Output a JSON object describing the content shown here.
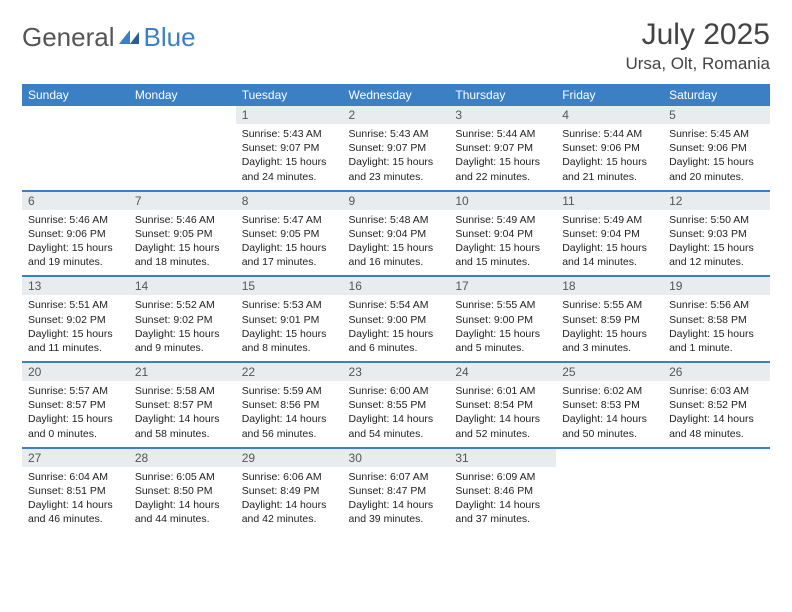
{
  "logo": {
    "text1": "General",
    "text2": "Blue"
  },
  "title": "July 2025",
  "location": "Ursa, Olt, Romania",
  "colors": {
    "brand": "#3b7fc4",
    "header_bg": "#3b7fc4",
    "header_text": "#ffffff",
    "daynum_bg": "#e9ecef",
    "body_text": "#222222",
    "page_bg": "#ffffff"
  },
  "weekdays": [
    "Sunday",
    "Monday",
    "Tuesday",
    "Wednesday",
    "Thursday",
    "Friday",
    "Saturday"
  ],
  "weeks": [
    [
      null,
      null,
      {
        "n": "1",
        "sr": "5:43 AM",
        "ss": "9:07 PM",
        "dl": "15 hours and 24 minutes."
      },
      {
        "n": "2",
        "sr": "5:43 AM",
        "ss": "9:07 PM",
        "dl": "15 hours and 23 minutes."
      },
      {
        "n": "3",
        "sr": "5:44 AM",
        "ss": "9:07 PM",
        "dl": "15 hours and 22 minutes."
      },
      {
        "n": "4",
        "sr": "5:44 AM",
        "ss": "9:06 PM",
        "dl": "15 hours and 21 minutes."
      },
      {
        "n": "5",
        "sr": "5:45 AM",
        "ss": "9:06 PM",
        "dl": "15 hours and 20 minutes."
      }
    ],
    [
      {
        "n": "6",
        "sr": "5:46 AM",
        "ss": "9:06 PM",
        "dl": "15 hours and 19 minutes."
      },
      {
        "n": "7",
        "sr": "5:46 AM",
        "ss": "9:05 PM",
        "dl": "15 hours and 18 minutes."
      },
      {
        "n": "8",
        "sr": "5:47 AM",
        "ss": "9:05 PM",
        "dl": "15 hours and 17 minutes."
      },
      {
        "n": "9",
        "sr": "5:48 AM",
        "ss": "9:04 PM",
        "dl": "15 hours and 16 minutes."
      },
      {
        "n": "10",
        "sr": "5:49 AM",
        "ss": "9:04 PM",
        "dl": "15 hours and 15 minutes."
      },
      {
        "n": "11",
        "sr": "5:49 AM",
        "ss": "9:04 PM",
        "dl": "15 hours and 14 minutes."
      },
      {
        "n": "12",
        "sr": "5:50 AM",
        "ss": "9:03 PM",
        "dl": "15 hours and 12 minutes."
      }
    ],
    [
      {
        "n": "13",
        "sr": "5:51 AM",
        "ss": "9:02 PM",
        "dl": "15 hours and 11 minutes."
      },
      {
        "n": "14",
        "sr": "5:52 AM",
        "ss": "9:02 PM",
        "dl": "15 hours and 9 minutes."
      },
      {
        "n": "15",
        "sr": "5:53 AM",
        "ss": "9:01 PM",
        "dl": "15 hours and 8 minutes."
      },
      {
        "n": "16",
        "sr": "5:54 AM",
        "ss": "9:00 PM",
        "dl": "15 hours and 6 minutes."
      },
      {
        "n": "17",
        "sr": "5:55 AM",
        "ss": "9:00 PM",
        "dl": "15 hours and 5 minutes."
      },
      {
        "n": "18",
        "sr": "5:55 AM",
        "ss": "8:59 PM",
        "dl": "15 hours and 3 minutes."
      },
      {
        "n": "19",
        "sr": "5:56 AM",
        "ss": "8:58 PM",
        "dl": "15 hours and 1 minute."
      }
    ],
    [
      {
        "n": "20",
        "sr": "5:57 AM",
        "ss": "8:57 PM",
        "dl": "15 hours and 0 minutes."
      },
      {
        "n": "21",
        "sr": "5:58 AM",
        "ss": "8:57 PM",
        "dl": "14 hours and 58 minutes."
      },
      {
        "n": "22",
        "sr": "5:59 AM",
        "ss": "8:56 PM",
        "dl": "14 hours and 56 minutes."
      },
      {
        "n": "23",
        "sr": "6:00 AM",
        "ss": "8:55 PM",
        "dl": "14 hours and 54 minutes."
      },
      {
        "n": "24",
        "sr": "6:01 AM",
        "ss": "8:54 PM",
        "dl": "14 hours and 52 minutes."
      },
      {
        "n": "25",
        "sr": "6:02 AM",
        "ss": "8:53 PM",
        "dl": "14 hours and 50 minutes."
      },
      {
        "n": "26",
        "sr": "6:03 AM",
        "ss": "8:52 PM",
        "dl": "14 hours and 48 minutes."
      }
    ],
    [
      {
        "n": "27",
        "sr": "6:04 AM",
        "ss": "8:51 PM",
        "dl": "14 hours and 46 minutes."
      },
      {
        "n": "28",
        "sr": "6:05 AM",
        "ss": "8:50 PM",
        "dl": "14 hours and 44 minutes."
      },
      {
        "n": "29",
        "sr": "6:06 AM",
        "ss": "8:49 PM",
        "dl": "14 hours and 42 minutes."
      },
      {
        "n": "30",
        "sr": "6:07 AM",
        "ss": "8:47 PM",
        "dl": "14 hours and 39 minutes."
      },
      {
        "n": "31",
        "sr": "6:09 AM",
        "ss": "8:46 PM",
        "dl": "14 hours and 37 minutes."
      },
      null,
      null
    ]
  ],
  "labels": {
    "sunrise": "Sunrise:",
    "sunset": "Sunset:",
    "daylight": "Daylight:"
  }
}
